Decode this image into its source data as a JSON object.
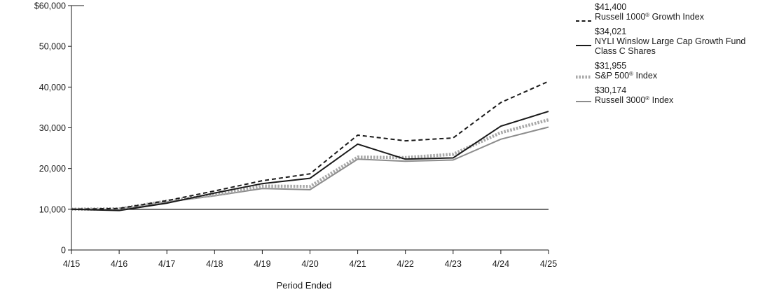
{
  "chart_data": {
    "type": "line",
    "xlabel": "Period Ended",
    "ylabel": "",
    "ylim": [
      0,
      60000
    ],
    "y_ticks": [
      0,
      10000,
      20000,
      30000,
      40000,
      50000,
      60000
    ],
    "y_tick_labels": [
      "0",
      "10,000",
      "20,000",
      "30,000",
      "40,000",
      "50,000",
      "$60,000"
    ],
    "categories": [
      "4/15",
      "4/16",
      "4/17",
      "4/18",
      "4/19",
      "4/20",
      "4/21",
      "4/22",
      "4/23",
      "4/24",
      "4/25"
    ],
    "reference_line": 10000,
    "grid": false,
    "legend_position": "right",
    "series": [
      {
        "name": "Russell 1000® Growth Index",
        "ending_value_label": "$41,400",
        "style": "dashed",
        "color": "#1a1a1a",
        "values": [
          10000,
          10200,
          12100,
          14500,
          17000,
          18700,
          28200,
          26800,
          27500,
          36200,
          41400
        ]
      },
      {
        "name": "NYLI Winslow Large Cap Growth Fund Class C Shares",
        "ending_value_label": "$34,021",
        "style": "solid",
        "color": "#1a1a1a",
        "values": [
          10000,
          9700,
          11500,
          14000,
          16300,
          17600,
          26000,
          22300,
          22600,
          30400,
          34021
        ]
      },
      {
        "name": "S&P 500® Index",
        "ending_value_label": "$31,955",
        "style": "dotted-thick",
        "color": "#a8a8a8",
        "values": [
          10000,
          10100,
          12000,
          13500,
          15700,
          15600,
          22800,
          22700,
          23500,
          28800,
          31955
        ]
      },
      {
        "name": "Russell 3000® Index",
        "ending_value_label": "$30,174",
        "style": "solid",
        "color": "#8c8c8c",
        "values": [
          10000,
          9900,
          11800,
          13300,
          15100,
          14800,
          22300,
          21800,
          22100,
          27200,
          30174
        ]
      }
    ]
  }
}
